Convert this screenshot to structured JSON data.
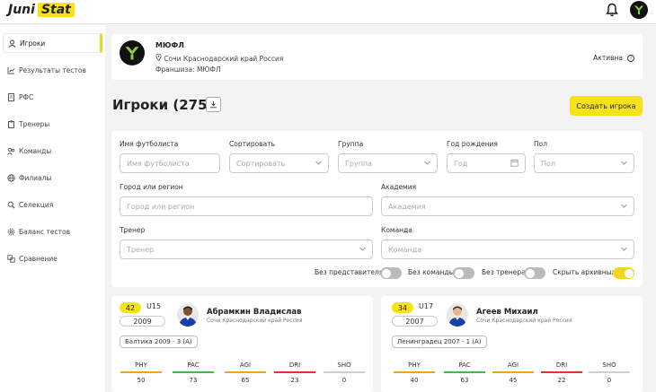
{
  "header": {
    "logo_part1": "Juni",
    "logo_part2": "Stat",
    "bell_icon": "bell-icon",
    "avatar_icon": "user-avatar"
  },
  "sidebar": {
    "items": [
      {
        "label": "Игроки",
        "icon": "user-icon",
        "active": true
      },
      {
        "label": "Результаты тестов",
        "icon": "chart-icon"
      },
      {
        "label": "РФС",
        "icon": "document-icon"
      },
      {
        "label": "Тренеры",
        "icon": "clipboard-icon"
      },
      {
        "label": "Команды",
        "icon": "team-icon"
      },
      {
        "label": "Филиалы",
        "icon": "globe-icon"
      },
      {
        "label": "Селекция",
        "icon": "search-icon"
      },
      {
        "label": "Баланс тестов",
        "icon": "gear-icon"
      },
      {
        "label": "Сравнение",
        "icon": "compare-icon"
      }
    ]
  },
  "org": {
    "name": "МЮФЛ",
    "location": "Сочи Краснодарский край Россия",
    "franchise": "Франшиза: МЮФЛ",
    "status": "Активна"
  },
  "players_header": {
    "title": "Игроки",
    "count": "(275)",
    "create_label": "Создать игрока"
  },
  "filters": {
    "name_label": "Имя футболиста",
    "name_placeholder": "Имя футболиста",
    "sort_label": "Сортировать",
    "sort_placeholder": "Сортировать",
    "group_label": "Группа",
    "group_placeholder": "Группа",
    "year_label": "Год рождения",
    "year_placeholder": "Год",
    "gender_label": "Пол",
    "gender_placeholder": "Пол",
    "city_label": "Город или регион",
    "city_placeholder": "Город или регион",
    "academy_label": "Академия",
    "academy_placeholder": "Академия",
    "coach_label": "Тренер",
    "coach_placeholder": "Тренер",
    "team_label": "Команда",
    "team_placeholder": "Команда",
    "toggles": [
      {
        "label": "Без представителя",
        "on": false
      },
      {
        "label": "Без команды",
        "on": false
      },
      {
        "label": "Без тренера",
        "on": false
      },
      {
        "label": "Скрыть архивных",
        "on": true
      }
    ]
  },
  "players": [
    {
      "score": "42",
      "age_group": "U15",
      "year": "2009",
      "name": "Абрамкин Владислав",
      "location": "Сочи Краснодарский край Россия",
      "team": "Балтика 2009 - 3 (А)",
      "stats": [
        {
          "label": "PHY",
          "value": "50",
          "color": "#f0a21a"
        },
        {
          "label": "PAC",
          "value": "73",
          "color": "#3fbf3f"
        },
        {
          "label": "AGI",
          "value": "65",
          "color": "#f0a21a"
        },
        {
          "label": "DRI",
          "value": "23",
          "color": "#e83030"
        },
        {
          "label": "SHO",
          "value": "0",
          "color": "#cfcfcf"
        }
      ]
    },
    {
      "score": "34",
      "age_group": "U17",
      "year": "2007",
      "name": "Агеев Михаил",
      "location": "Сочи Краснодарский край Россия",
      "team": "Ленинградец 2007 - 1 (А)",
      "stats": [
        {
          "label": "PHY",
          "value": "40",
          "color": "#f0a21a"
        },
        {
          "label": "PAC",
          "value": "63",
          "color": "#3fbf3f"
        },
        {
          "label": "AGI",
          "value": "45",
          "color": "#f0a21a"
        },
        {
          "label": "DRI",
          "value": "22",
          "color": "#e83030"
        },
        {
          "label": "SHO",
          "value": "0",
          "color": "#cfcfcf"
        }
      ]
    }
  ],
  "colors": {
    "accent": "#f7e21a",
    "background": "#f3f3f3"
  }
}
